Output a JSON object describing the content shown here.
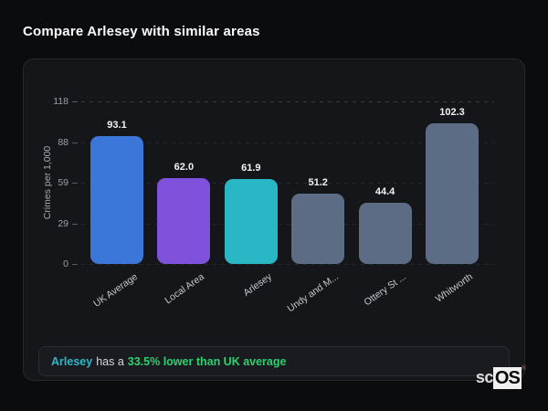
{
  "page": {
    "title": "Compare Arlesey with similar areas"
  },
  "chart_data": {
    "type": "bar",
    "title": "",
    "categories": [
      "UK Average",
      "Local Area",
      "Arlesey",
      "Undy and M...",
      "Ottery St ...",
      "Whitworth"
    ],
    "values": [
      93.1,
      62.0,
      61.9,
      51.2,
      44.4,
      102.3
    ],
    "value_labels": [
      "93.1",
      "62.0",
      "61.9",
      "51.2",
      "44.4",
      "102.3"
    ],
    "bar_colors": [
      "#3b76d9",
      "#8052dc",
      "#29b7c6",
      "#5d6c85",
      "#5d6c85",
      "#5d6c85"
    ],
    "xlabel": "",
    "ylabel": "Crimes per 1,000",
    "yticks": [
      118,
      88,
      59,
      29,
      0
    ],
    "ylim": [
      0,
      118
    ],
    "grid": "horizontal-dashed",
    "legend": "none"
  },
  "annotation": {
    "area_name": "Arlesey",
    "middle_text": "has a",
    "highlight_text": "33.5% lower than UK average",
    "area_color": "#2cb9c8",
    "highlight_color": "#2bd16e"
  },
  "logo": {
    "prefix": "sc",
    "suffix": "OS",
    "registered": "®"
  }
}
